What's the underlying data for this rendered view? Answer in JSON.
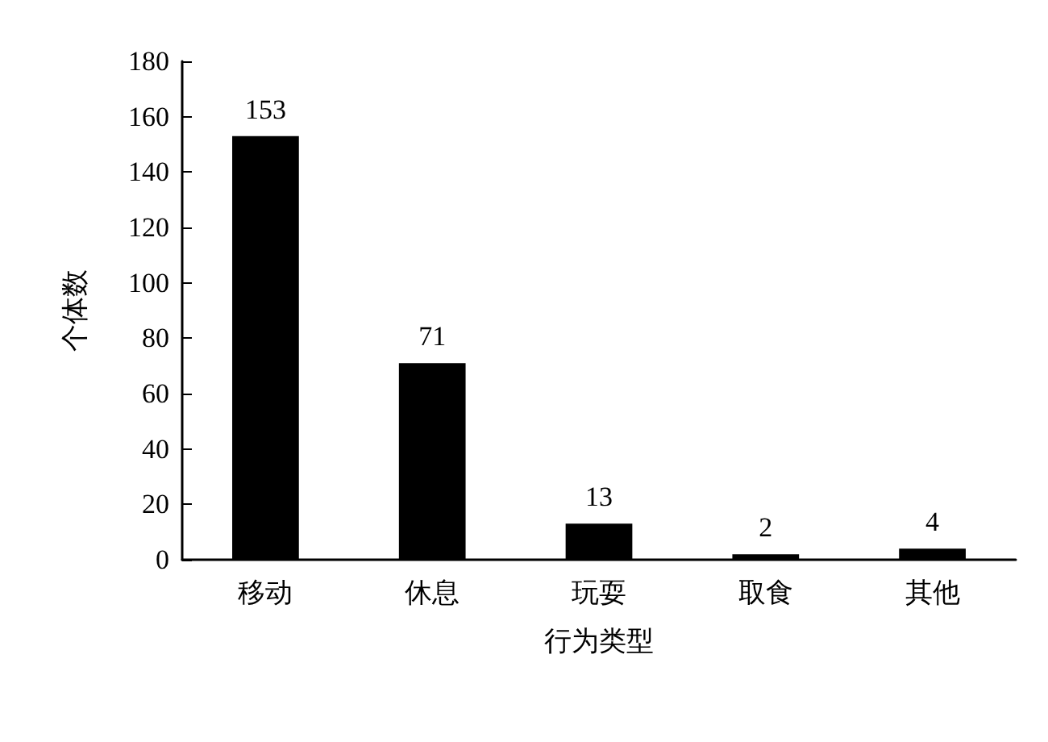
{
  "chart_data": {
    "type": "bar",
    "xlabel": "行为类型",
    "ylabel": "个体数",
    "categories": [
      "移动",
      "休息",
      "玩耍",
      "取食",
      "其他"
    ],
    "values": [
      153,
      71,
      13,
      2,
      4
    ],
    "color": "#000000",
    "ylim": [
      0,
      180
    ],
    "yticks": [
      0,
      20,
      40,
      60,
      80,
      100,
      120,
      140,
      160,
      180
    ],
    "grid": false,
    "data_labels": true
  }
}
